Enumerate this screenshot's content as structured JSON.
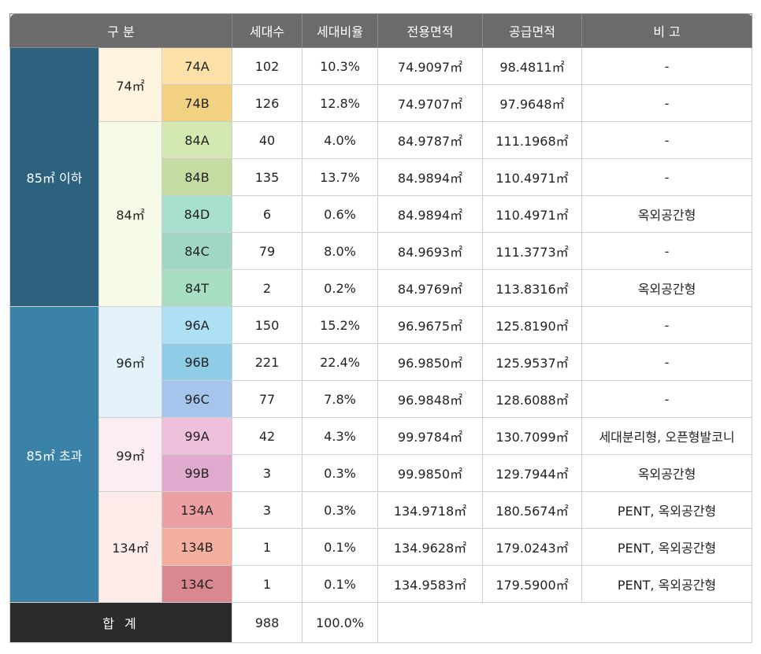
{
  "header": {
    "division": "구 분",
    "households": "세대수",
    "ratio": "세대비율",
    "exclusive_area": "전용면적",
    "supply_area": "공급면적",
    "remarks": "비 고"
  },
  "colors": {
    "group_under85": "#2c627e",
    "group_over85": "#3a82a8",
    "header_bg": "#6b6b6b",
    "total_bg": "#2b2b2b"
  },
  "groups": [
    {
      "label": "85㎡ 이하",
      "color": "#2c627e"
    },
    {
      "label": "85㎡ 초과",
      "color": "#3a82a8"
    }
  ],
  "sizes": [
    {
      "label": "74㎡",
      "color": "#fef3de"
    },
    {
      "label": "84㎡",
      "color": "#f5fbe6"
    },
    {
      "label": "96㎡",
      "color": "#e4f3fb"
    },
    {
      "label": "99㎡",
      "color": "#fcecf3"
    },
    {
      "label": "134㎡",
      "color": "#fdebea"
    }
  ],
  "rows": [
    {
      "type": "74A",
      "type_color": "#fbe1a8",
      "households": "102",
      "ratio": "10.3%",
      "exclusive": "74.9097㎡",
      "supply": "98.4811㎡",
      "remark": "-"
    },
    {
      "type": "74B",
      "type_color": "#f2d282",
      "households": "126",
      "ratio": "12.8%",
      "exclusive": "74.9707㎡",
      "supply": "97.9648㎡",
      "remark": "-"
    },
    {
      "type": "84A",
      "type_color": "#d4e8b2",
      "households": "40",
      "ratio": "4.0%",
      "exclusive": "84.9787㎡",
      "supply": "111.1968㎡",
      "remark": "-"
    },
    {
      "type": "84B",
      "type_color": "#c4dca2",
      "households": "135",
      "ratio": "13.7%",
      "exclusive": "84.9894㎡",
      "supply": "110.4971㎡",
      "remark": "-"
    },
    {
      "type": "84D",
      "type_color": "#a8e0cf",
      "households": "6",
      "ratio": "0.6%",
      "exclusive": "84.9894㎡",
      "supply": "110.4971㎡",
      "remark": "옥외공간형"
    },
    {
      "type": "84C",
      "type_color": "#9fd6c4",
      "households": "79",
      "ratio": "8.0%",
      "exclusive": "84.9693㎡",
      "supply": "111.3773㎡",
      "remark": "-"
    },
    {
      "type": "84T",
      "type_color": "#a8dfc2",
      "households": "2",
      "ratio": "0.2%",
      "exclusive": "84.9769㎡",
      "supply": "113.8316㎡",
      "remark": "옥외공간형"
    },
    {
      "type": "96A",
      "type_color": "#aee0f5",
      "households": "150",
      "ratio": "15.2%",
      "exclusive": "96.9675㎡",
      "supply": "125.8190㎡",
      "remark": "-"
    },
    {
      "type": "96B",
      "type_color": "#8fcde6",
      "households": "221",
      "ratio": "22.4%",
      "exclusive": "96.9850㎡",
      "supply": "125.9537㎡",
      "remark": "-"
    },
    {
      "type": "96C",
      "type_color": "#a6c5ec",
      "households": "77",
      "ratio": "7.8%",
      "exclusive": "96.9848㎡",
      "supply": "128.6088㎡",
      "remark": "-"
    },
    {
      "type": "99A",
      "type_color": "#eec0dc",
      "households": "42",
      "ratio": "4.3%",
      "exclusive": "99.9784㎡",
      "supply": "130.7099㎡",
      "remark": "세대분리형, 오픈형발코니"
    },
    {
      "type": "99B",
      "type_color": "#dfaacd",
      "households": "3",
      "ratio": "0.3%",
      "exclusive": "99.9850㎡",
      "supply": "129.7944㎡",
      "remark": "옥외공간형"
    },
    {
      "type": "134A",
      "type_color": "#eca0a4",
      "households": "3",
      "ratio": "0.3%",
      "exclusive": "134.9718㎡",
      "supply": "180.5674㎡",
      "remark": "PENT, 옥외공간형"
    },
    {
      "type": "134B",
      "type_color": "#f4b09f",
      "households": "1",
      "ratio": "0.1%",
      "exclusive": "134.9628㎡",
      "supply": "179.0243㎡",
      "remark": "PENT, 옥외공간형"
    },
    {
      "type": "134C",
      "type_color": "#d98890",
      "households": "1",
      "ratio": "0.1%",
      "exclusive": "134.9583㎡",
      "supply": "179.5900㎡",
      "remark": "PENT, 옥외공간형"
    }
  ],
  "total": {
    "label": "합 계",
    "households": "988",
    "ratio": "100.0%"
  }
}
